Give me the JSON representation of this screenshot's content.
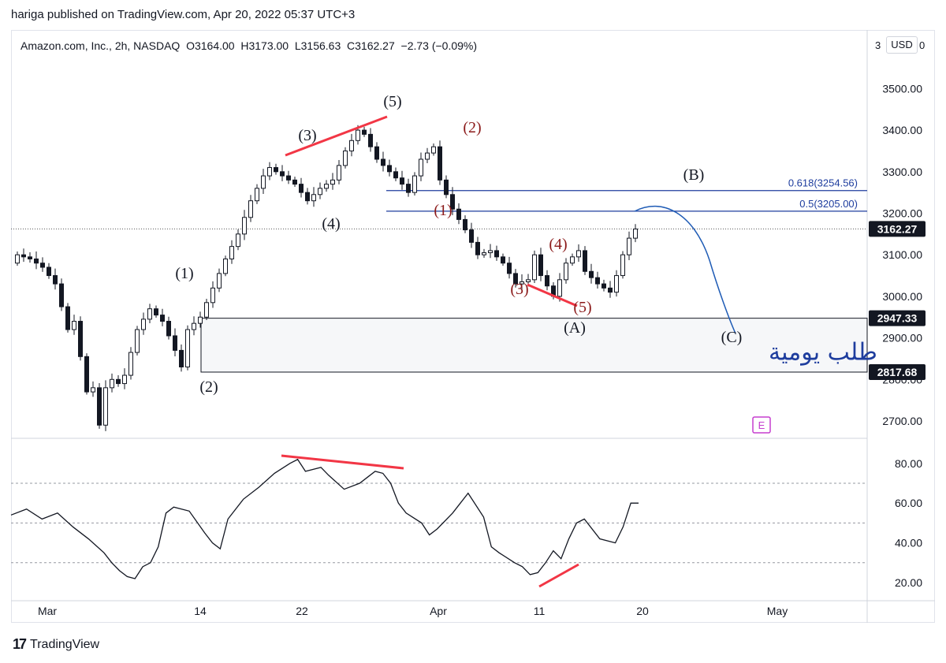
{
  "header": {
    "published_line": "hariga published on TradingView.com, Apr 20, 2022 05:37 UTC+3",
    "symbol_line": "Amazon.com, Inc., 2h, NASDAQ  O3164.00  H3173.00  L3156.63  C3162.27  −2.73 (−0.09%)",
    "currency_button": "USD",
    "price_scale_clipped_first": "3",
    "price_scale_clipped_second": "0"
  },
  "footer": {
    "brand_mark": "17",
    "brand_name": "TradingView"
  },
  "chart_data": [
    {
      "type": "candlestick",
      "title": "Amazon.com, Inc., 2h, NASDAQ",
      "y_axis": {
        "ticks": [
          2700,
          2800,
          2900,
          3000,
          3100,
          3200,
          3300,
          3400,
          3500
        ],
        "tick_labels": [
          "2700.00",
          "2800.00",
          "2900.00",
          "3000.00",
          "3100.00",
          "3200.00",
          "3300.00",
          "3400.00",
          "3500.00"
        ],
        "range": [
          2670,
          3570
        ]
      },
      "x_axis": {
        "ticks": [
          "Mar",
          "14",
          "22",
          "Apr",
          "11",
          "20",
          "May"
        ]
      },
      "series_path": [
        [
          0,
          3080
        ],
        [
          1,
          3100
        ],
        [
          3,
          3090
        ],
        [
          5,
          3070
        ],
        [
          7,
          3030
        ],
        [
          9,
          2920
        ],
        [
          10,
          2940
        ],
        [
          12,
          2770
        ],
        [
          13,
          2780
        ],
        [
          14,
          2690
        ],
        [
          15,
          2780
        ],
        [
          16,
          2800
        ],
        [
          17,
          2790
        ],
        [
          18,
          2810
        ],
        [
          20,
          2920
        ],
        [
          22,
          2970
        ],
        [
          24,
          2940
        ],
        [
          26,
          2870
        ],
        [
          27,
          2830
        ],
        [
          28,
          2920
        ],
        [
          30,
          2950
        ],
        [
          32,
          3020
        ],
        [
          34,
          3090
        ],
        [
          36,
          3150
        ],
        [
          38,
          3230
        ],
        [
          40,
          3290
        ],
        [
          41,
          3310
        ],
        [
          43,
          3290
        ],
        [
          45,
          3270
        ],
        [
          47,
          3230
        ],
        [
          49,
          3260
        ],
        [
          51,
          3280
        ],
        [
          53,
          3350
        ],
        [
          55,
          3400
        ],
        [
          56,
          3390
        ],
        [
          58,
          3330
        ],
        [
          60,
          3300
        ],
        [
          62,
          3270
        ],
        [
          63,
          3250
        ],
        [
          65,
          3330
        ],
        [
          67,
          3360
        ],
        [
          68,
          3280
        ],
        [
          70,
          3210
        ],
        [
          72,
          3160
        ],
        [
          74,
          3100
        ],
        [
          76,
          3110
        ],
        [
          78,
          3080
        ],
        [
          80,
          3030
        ],
        [
          82,
          3040
        ],
        [
          83,
          3100
        ],
        [
          84,
          3050
        ],
        [
          86,
          3000
        ],
        [
          88,
          3080
        ],
        [
          90,
          3110
        ],
        [
          91,
          3060
        ],
        [
          93,
          3030
        ],
        [
          95,
          3010
        ],
        [
          96,
          3050
        ],
        [
          97,
          3100
        ],
        [
          98,
          3140
        ],
        [
          99,
          3162
        ]
      ],
      "last_close": 3162.27,
      "price_labels": [
        "3162.27",
        "2947.33",
        "2817.68"
      ],
      "fibonacci": [
        {
          "label": "0.618(3254.56)",
          "value": 3254.56
        },
        {
          "label": "0.5(3205.00)",
          "value": 3205.0
        }
      ],
      "zone": {
        "from": 2817.68,
        "to": 2947.33,
        "label": "طلب يومية"
      },
      "wave_labels_major": [
        "(1)",
        "(2)",
        "(3)",
        "(4)",
        "(5)",
        "(A)",
        "(B)",
        "(C)"
      ],
      "wave_labels_minor": [
        "(1)",
        "(2)",
        "(3)",
        "(4)",
        "(5)"
      ],
      "marker": "E"
    },
    {
      "type": "line",
      "y_axis": {
        "ticks": [
          20,
          40,
          60,
          80
        ],
        "tick_labels": [
          "20.00",
          "40.00",
          "60.00",
          "80.00"
        ],
        "range": [
          12,
          92
        ]
      },
      "levels": [
        30,
        50,
        70
      ],
      "values": [
        [
          0,
          54
        ],
        [
          2,
          57
        ],
        [
          4,
          52
        ],
        [
          6,
          55
        ],
        [
          8,
          48
        ],
        [
          10,
          42
        ],
        [
          12,
          35
        ],
        [
          13,
          30
        ],
        [
          14,
          26
        ],
        [
          15,
          23
        ],
        [
          16,
          22
        ],
        [
          17,
          28
        ],
        [
          18,
          30
        ],
        [
          19,
          38
        ],
        [
          20,
          55
        ],
        [
          21,
          58
        ],
        [
          23,
          56
        ],
        [
          25,
          45
        ],
        [
          26,
          40
        ],
        [
          27,
          37
        ],
        [
          28,
          52
        ],
        [
          30,
          62
        ],
        [
          32,
          68
        ],
        [
          34,
          75
        ],
        [
          36,
          80
        ],
        [
          37,
          82
        ],
        [
          38,
          76
        ],
        [
          40,
          78
        ],
        [
          41,
          74
        ],
        [
          43,
          67
        ],
        [
          45,
          70
        ],
        [
          46,
          73
        ],
        [
          47,
          76
        ],
        [
          48,
          75
        ],
        [
          49,
          70
        ],
        [
          50,
          60
        ],
        [
          51,
          55
        ],
        [
          53,
          50
        ],
        [
          54,
          44
        ],
        [
          55,
          47
        ],
        [
          57,
          55
        ],
        [
          58,
          60
        ],
        [
          59,
          65
        ],
        [
          61,
          53
        ],
        [
          62,
          38
        ],
        [
          63,
          35
        ],
        [
          65,
          30
        ],
        [
          66,
          28
        ],
        [
          67,
          24
        ],
        [
          68,
          25
        ],
        [
          69,
          30
        ],
        [
          70,
          36
        ],
        [
          71,
          32
        ],
        [
          72,
          42
        ],
        [
          73,
          50
        ],
        [
          74,
          52
        ],
        [
          76,
          42
        ],
        [
          78,
          40
        ],
        [
          79,
          48
        ],
        [
          80,
          60
        ],
        [
          81,
          60
        ]
      ]
    }
  ]
}
